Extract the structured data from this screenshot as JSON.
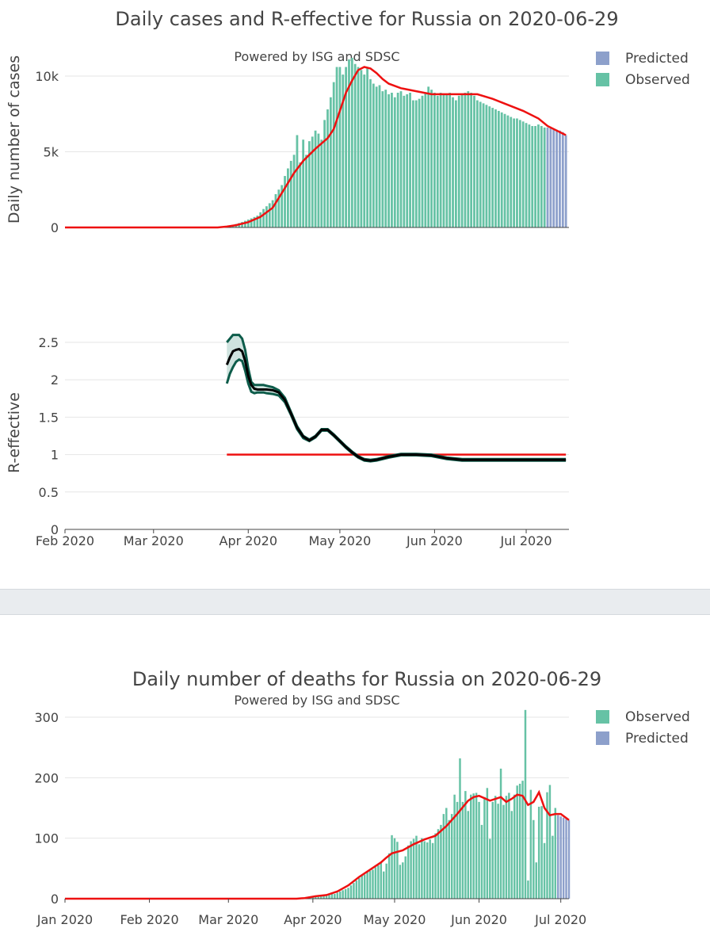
{
  "colors": {
    "observed": "#66c2a5",
    "predicted": "#8da0cb",
    "fit": "#ee1111",
    "reff": "#000000",
    "band": "#0d5c4a",
    "bandfill": "#cfe3df",
    "grid": "#e6e6e6"
  },
  "top_chart": {
    "title": "Daily cases and R-effective for Russia on 2020-06-29",
    "subtitle": "Powered by ISG and SDSC",
    "legend": [
      {
        "label": "Predicted",
        "color": "#8da0cb"
      },
      {
        "label": "Observed",
        "color": "#66c2a5"
      }
    ]
  },
  "bottom_chart": {
    "title": "Daily number of deaths for Russia on 2020-06-29",
    "subtitle": "Powered by ISG and SDSC",
    "legend": [
      {
        "label": "Observed",
        "color": "#66c2a5"
      },
      {
        "label": "Predicted",
        "color": "#8da0cb"
      }
    ]
  },
  "chart_data": [
    {
      "type": "bar",
      "name": "cases",
      "ylabel": "Daily number of cases",
      "x_range_days": [
        0,
        165
      ],
      "ylim": [
        0,
        11000
      ],
      "yticks": [
        {
          "v": 0,
          "label": "0"
        },
        {
          "v": 5000,
          "label": "5k"
        },
        {
          "v": 10000,
          "label": "10k"
        }
      ],
      "x_start": "2020-02-01",
      "series": [
        {
          "name": "Observed",
          "x": [
            53,
            54,
            55,
            56,
            57,
            58,
            59,
            60,
            61,
            62,
            63,
            64,
            65,
            66,
            67,
            68,
            69,
            70,
            71,
            72,
            73,
            74,
            75,
            76,
            77,
            78,
            79,
            80,
            81,
            82,
            83,
            84,
            85,
            86,
            87,
            88,
            89,
            90,
            91,
            92,
            93,
            94,
            95,
            96,
            97,
            98,
            99,
            100,
            101,
            102,
            103,
            104,
            105,
            106,
            107,
            108,
            109,
            110,
            111,
            112,
            113,
            114,
            115,
            116,
            117,
            118,
            119,
            120,
            121,
            122,
            123,
            124,
            125,
            126,
            127,
            128,
            129,
            130,
            131,
            132,
            133,
            134,
            135,
            136,
            137,
            138,
            139,
            140,
            141,
            142,
            143,
            144,
            145,
            146,
            147,
            148,
            149,
            150,
            151,
            152,
            153,
            154,
            155,
            156,
            157
          ],
          "values": [
            70,
            130,
            160,
            230,
            290,
            360,
            440,
            520,
            600,
            690,
            780,
            1000,
            1220,
            1400,
            1600,
            1800,
            2200,
            2500,
            2800,
            3400,
            3900,
            4400,
            4800,
            6100,
            4300,
            5800,
            4800,
            5700,
            6000,
            6400,
            6200,
            5800,
            7100,
            7800,
            8600,
            9600,
            10600,
            10600,
            10100,
            10600,
            11100,
            11200,
            10800,
            10600,
            10400,
            10100,
            10500,
            9800,
            9500,
            9300,
            9400,
            9000,
            9100,
            8800,
            8900,
            8600,
            8900,
            9000,
            8700,
            8800,
            8900,
            8400,
            8400,
            8500,
            8700,
            8900,
            9300,
            9100,
            8900,
            8700,
            8900,
            8800,
            8800,
            8900,
            8600,
            8400,
            8700,
            8800,
            8900,
            9000,
            8900,
            8700,
            8400,
            8300,
            8200,
            8100,
            8000,
            7900,
            7800,
            7700,
            7600,
            7500,
            7400,
            7300,
            7200,
            7200,
            7100,
            7000,
            6900,
            6800,
            6700,
            6700,
            6800,
            6700,
            6600
          ]
        },
        {
          "name": "Predicted",
          "x": [
            158,
            159,
            160,
            161,
            162,
            163,
            164
          ],
          "values": [
            6600,
            6550,
            6500,
            6450,
            6400,
            6300,
            6100
          ]
        }
      ],
      "fit_line": {
        "x": [
          0,
          50,
          53,
          56,
          60,
          64,
          68,
          72,
          75,
          78,
          82,
          86,
          88,
          90,
          92,
          94,
          96,
          98,
          100,
          102,
          104,
          106,
          110,
          115,
          120,
          125,
          130,
          135,
          140,
          145,
          150,
          155,
          158,
          164
        ],
        "values": [
          0,
          0,
          60,
          150,
          350,
          700,
          1300,
          2600,
          3600,
          4400,
          5200,
          5900,
          6500,
          7700,
          8900,
          9700,
          10400,
          10600,
          10500,
          10200,
          9800,
          9500,
          9200,
          9000,
          8800,
          8800,
          8800,
          8800,
          8500,
          8100,
          7700,
          7200,
          6700,
          6100
        ]
      }
    },
    {
      "type": "line",
      "name": "r_effective",
      "ylabel": "R-effective",
      "x_range_days": [
        0,
        165
      ],
      "ylim": [
        0,
        2.75
      ],
      "yticks": [
        {
          "v": 0,
          "label": "0"
        },
        {
          "v": 0.5,
          "label": "0.5"
        },
        {
          "v": 1,
          "label": "1"
        },
        {
          "v": 1.5,
          "label": "1.5"
        },
        {
          "v": 2,
          "label": "2"
        },
        {
          "v": 2.5,
          "label": "2.5"
        }
      ],
      "xticks": [
        {
          "v": 0,
          "label": "Feb 2020"
        },
        {
          "v": 29,
          "label": "Mar 2020"
        },
        {
          "v": 60,
          "label": "Apr 2020"
        },
        {
          "v": 90,
          "label": "May 2020"
        },
        {
          "v": 121,
          "label": "Jun 2020"
        },
        {
          "v": 151,
          "label": "Jul 2020"
        }
      ],
      "x": [
        53,
        54,
        55,
        56,
        57,
        58,
        59,
        60,
        61,
        62,
        63,
        64,
        65,
        66,
        68,
        70,
        72,
        74,
        76,
        78,
        80,
        82,
        84,
        86,
        88,
        90,
        92,
        94,
        96,
        98,
        100,
        102,
        104,
        106,
        110,
        115,
        120,
        125,
        130,
        135,
        140,
        145,
        150,
        155,
        160,
        164
      ],
      "r": [
        2.2,
        2.3,
        2.38,
        2.4,
        2.41,
        2.38,
        2.25,
        2.05,
        1.93,
        1.88,
        1.87,
        1.87,
        1.87,
        1.87,
        1.86,
        1.83,
        1.73,
        1.55,
        1.36,
        1.24,
        1.19,
        1.24,
        1.33,
        1.33,
        1.26,
        1.18,
        1.1,
        1.03,
        0.97,
        0.93,
        0.92,
        0.93,
        0.95,
        0.97,
        1.0,
        1.0,
        0.99,
        0.95,
        0.93,
        0.93,
        0.93,
        0.93,
        0.93,
        0.93,
        0.93,
        0.93
      ],
      "upper": [
        2.5,
        2.55,
        2.6,
        2.6,
        2.6,
        2.55,
        2.4,
        2.15,
        1.97,
        1.93,
        1.93,
        1.93,
        1.93,
        1.92,
        1.9,
        1.86,
        1.76,
        1.57,
        1.38,
        1.25,
        1.2,
        1.25,
        1.34,
        1.34,
        1.27,
        1.19,
        1.11,
        1.04,
        0.98,
        0.94,
        0.93,
        0.94,
        0.96,
        0.98,
        1.01,
        1.01,
        1.0,
        0.96,
        0.94,
        0.94,
        0.94,
        0.94,
        0.94,
        0.94,
        0.94,
        0.94
      ],
      "lower": [
        1.95,
        2.08,
        2.17,
        2.24,
        2.27,
        2.25,
        2.12,
        1.95,
        1.84,
        1.82,
        1.83,
        1.83,
        1.83,
        1.82,
        1.81,
        1.79,
        1.7,
        1.53,
        1.34,
        1.22,
        1.18,
        1.23,
        1.32,
        1.32,
        1.25,
        1.17,
        1.09,
        1.02,
        0.96,
        0.92,
        0.91,
        0.92,
        0.94,
        0.96,
        0.99,
        0.99,
        0.98,
        0.94,
        0.92,
        0.92,
        0.92,
        0.92,
        0.92,
        0.92,
        0.92,
        0.92
      ],
      "reference_line": {
        "value": 1,
        "x_start": 53,
        "x_end": 164
      }
    },
    {
      "type": "bar",
      "name": "deaths",
      "title": "Daily number of deaths for Russia on 2020-06-29",
      "x_range_days": [
        0,
        185
      ],
      "ylim": [
        0,
        330
      ],
      "yticks": [
        {
          "v": 0,
          "label": "0"
        },
        {
          "v": 100,
          "label": "100"
        },
        {
          "v": 200,
          "label": "200"
        },
        {
          "v": 300,
          "label": "300"
        }
      ],
      "xticks": [
        {
          "v": 0,
          "label": "Jan 2020"
        },
        {
          "v": 31,
          "label": "Feb 2020"
        },
        {
          "v": 60,
          "label": "Mar 2020"
        },
        {
          "v": 91,
          "label": "Apr 2020"
        },
        {
          "v": 121,
          "label": "May 2020"
        },
        {
          "v": 152,
          "label": "Jun 2020"
        },
        {
          "v": 182,
          "label": "Jul 2020"
        }
      ],
      "series": [
        {
          "name": "Observed",
          "x": [
            89,
            90,
            91,
            92,
            93,
            94,
            95,
            96,
            97,
            98,
            99,
            100,
            101,
            102,
            103,
            104,
            105,
            106,
            107,
            108,
            109,
            110,
            111,
            112,
            113,
            114,
            115,
            116,
            117,
            118,
            119,
            120,
            121,
            122,
            123,
            124,
            125,
            126,
            127,
            128,
            129,
            130,
            131,
            132,
            133,
            134,
            135,
            136,
            137,
            138,
            139,
            140,
            141,
            142,
            143,
            144,
            145,
            146,
            147,
            148,
            149,
            150,
            151,
            152,
            153,
            154,
            155,
            156,
            157,
            158,
            159,
            160,
            161,
            162,
            163,
            164,
            165,
            166,
            167,
            168,
            169,
            170,
            171,
            172,
            173,
            174,
            175,
            176,
            177,
            178,
            179,
            180
          ],
          "values": [
            1,
            1,
            2,
            3,
            3,
            4,
            5,
            5,
            6,
            8,
            8,
            10,
            12,
            14,
            16,
            18,
            22,
            26,
            30,
            34,
            38,
            40,
            44,
            46,
            48,
            52,
            55,
            60,
            45,
            58,
            75,
            105,
            100,
            94,
            56,
            60,
            70,
            88,
            95,
            99,
            104,
            90,
            100,
            95,
            93,
            98,
            92,
            108,
            115,
            122,
            140,
            150,
            130,
            140,
            172,
            160,
            232,
            160,
            178,
            145,
            172,
            174,
            175,
            160,
            122,
            168,
            183,
            99,
            160,
            170,
            157,
            215,
            155,
            170,
            175,
            145,
            172,
            187,
            190,
            195,
            312,
            30,
            180,
            130,
            60,
            152,
            153,
            92,
            176,
            188,
            104,
            150
          ]
        },
        {
          "name": "Predicted",
          "x": [
            181,
            182,
            183,
            184,
            185
          ],
          "values": [
            138,
            136,
            134,
            132,
            130
          ]
        }
      ],
      "fit_line": {
        "x": [
          0,
          85,
          88,
          92,
          96,
          100,
          104,
          108,
          112,
          116,
          118,
          120,
          124,
          128,
          132,
          136,
          140,
          144,
          148,
          150,
          152,
          156,
          160,
          162,
          164,
          166,
          168,
          170,
          172,
          174,
          176,
          178,
          180,
          182,
          185
        ],
        "values": [
          0,
          0,
          1,
          4,
          6,
          12,
          22,
          36,
          48,
          60,
          68,
          75,
          80,
          90,
          98,
          104,
          120,
          140,
          162,
          168,
          170,
          162,
          168,
          160,
          165,
          172,
          170,
          155,
          160,
          176,
          150,
          138,
          140,
          140,
          130
        ]
      }
    }
  ]
}
